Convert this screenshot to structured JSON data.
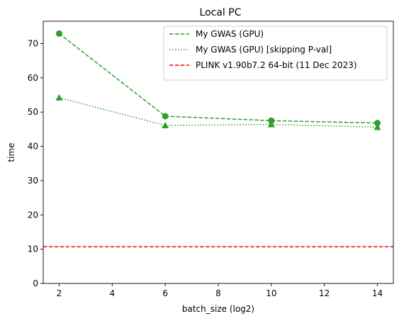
{
  "chart_data": {
    "type": "line",
    "title": "Local PC",
    "xlabel": "batch_size (log2)",
    "ylabel": "time",
    "xlim": [
      1.4,
      14.6
    ],
    "ylim": [
      0,
      76.5
    ],
    "xticks": [
      2,
      4,
      6,
      8,
      10,
      12,
      14
    ],
    "yticks": [
      0,
      10,
      20,
      30,
      40,
      50,
      60,
      70
    ],
    "grid": false,
    "legend_position": "top-right",
    "series": [
      {
        "name": "My GWAS (GPU)",
        "x": [
          2,
          6,
          10,
          14
        ],
        "y": [
          72.9,
          48.8,
          47.5,
          46.8
        ],
        "color": "#2ca02c",
        "linestyle": "dashed",
        "marker": "circle"
      },
      {
        "name": "My GWAS (GPU) [skipping P-val]",
        "x": [
          2,
          6,
          10,
          14
        ],
        "y": [
          54.2,
          46.1,
          46.4,
          45.6
        ],
        "color": "#2ca02c",
        "linestyle": "dotted",
        "marker": "triangle"
      },
      {
        "name": "PLINK v1.90b7.2 64-bit (11 Dec 2023)",
        "hline": 10.7,
        "color": "#ff0000",
        "linestyle": "dashed",
        "marker": "none"
      }
    ]
  }
}
